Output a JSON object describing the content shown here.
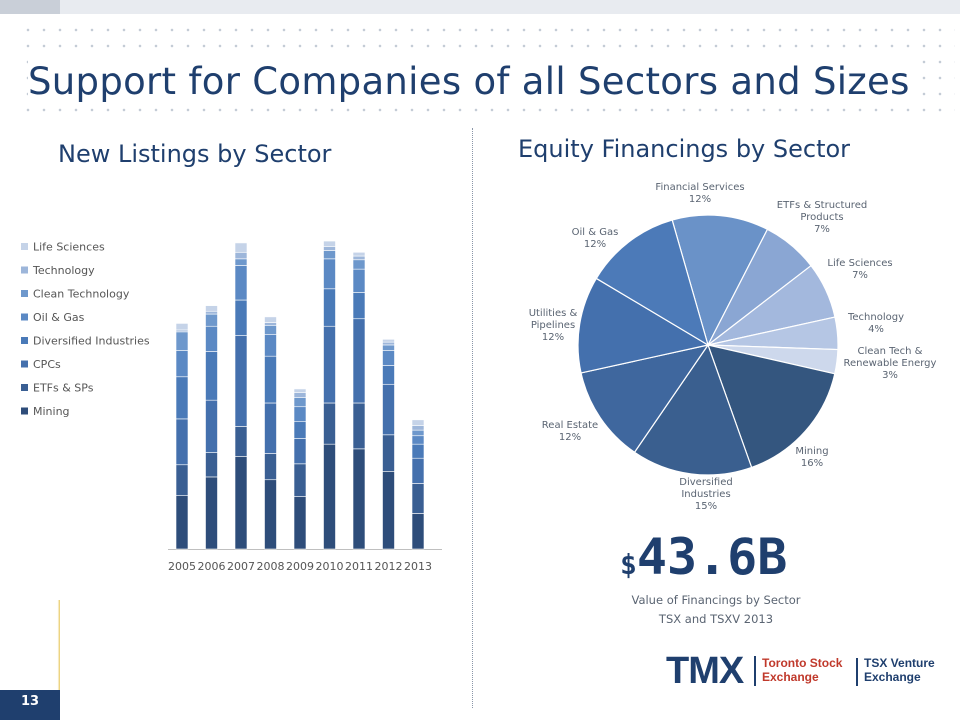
{
  "page": {
    "title": "Support for Companies of all Sectors and Sizes",
    "page_number": "13"
  },
  "headline": {
    "currency": "$",
    "value": "43.6B",
    "caption_line1": "Value of Financings by Sector",
    "caption_line2": "TSX and TSXV 2013"
  },
  "logo": {
    "brand": "TMX",
    "exchange1_line1": "Toronto Stock",
    "exchange1_line2": "Exchange",
    "exchange2_line1": "TSX Venture",
    "exchange2_line2": "Exchange"
  },
  "colors": {
    "title": "#1f3f6e",
    "series": [
      "#2e4d7a",
      "#3a5f93",
      "#4470ad",
      "#4a7ab8",
      "#5b89c4",
      "#6e98cc",
      "#9db6da",
      "#c5d3e8"
    ]
  },
  "chart_data": [
    {
      "type": "bar",
      "stacked": true,
      "title": "New Listings by Sector",
      "categories": [
        "2005",
        "2006",
        "2007",
        "2008",
        "2009",
        "2010",
        "2011",
        "2012",
        "2013"
      ],
      "legend_position": "left",
      "legend_order": [
        "Life Sciences",
        "Technology",
        "Clean Technology",
        "Oil & Gas",
        "Diversified Industries",
        "CPCs",
        "ETFs & SPs",
        "Mining"
      ],
      "series": [
        {
          "name": "Mining",
          "values": [
            57,
            77,
            99,
            74,
            56,
            112,
            107,
            83,
            38
          ]
        },
        {
          "name": "ETFs & SPs",
          "values": [
            33,
            26,
            32,
            28,
            35,
            44,
            49,
            39,
            32
          ]
        },
        {
          "name": "CPCs",
          "values": [
            49,
            56,
            97,
            54,
            27,
            82,
            90,
            54,
            27
          ]
        },
        {
          "name": "Diversified Industries",
          "values": [
            45,
            52,
            38,
            50,
            18,
            40,
            28,
            20,
            15
          ]
        },
        {
          "name": "Oil & Gas",
          "values": [
            28,
            27,
            37,
            23,
            16,
            32,
            25,
            16,
            9
          ]
        },
        {
          "name": "Clean Technology",
          "values": [
            20,
            13,
            7,
            10,
            10,
            9,
            10,
            6,
            6
          ]
        },
        {
          "name": "Technology",
          "values": [
            2,
            3,
            7,
            3,
            5,
            4,
            4,
            3,
            5
          ]
        },
        {
          "name": "Life Sciences",
          "values": [
            7,
            6,
            10,
            6,
            4,
            6,
            4,
            3,
            6
          ]
        }
      ]
    },
    {
      "type": "pie",
      "title": "Equity Financings by Sector",
      "slices": [
        {
          "label": "Financial Services",
          "value": 12,
          "display": "12%"
        },
        {
          "label": "ETFs & Structured Products",
          "value": 7,
          "display": "7%"
        },
        {
          "label": "Life Sciences",
          "value": 7,
          "display": "7%"
        },
        {
          "label": "Technology",
          "value": 4,
          "display": "4%"
        },
        {
          "label": "Clean Tech & Renewable Energy",
          "value": 3,
          "display": "3%"
        },
        {
          "label": "Mining",
          "value": 16,
          "display": "16%"
        },
        {
          "label": "Diversified Industries",
          "value": 15,
          "display": "15%"
        },
        {
          "label": "Real Estate",
          "value": 12,
          "display": "12%"
        },
        {
          "label": "Utilities & Pipelines",
          "value": 12,
          "display": "12%"
        },
        {
          "label": "Oil & Gas",
          "value": 12,
          "display": "12%"
        }
      ],
      "slice_colors": [
        "#6a92c8",
        "#8aa6d3",
        "#a3b8dd",
        "#b5c6e4",
        "#cdd8ec",
        "#34567f",
        "#3a5f8f",
        "#3f679e",
        "#4470ad",
        "#4c7ab8"
      ]
    }
  ]
}
